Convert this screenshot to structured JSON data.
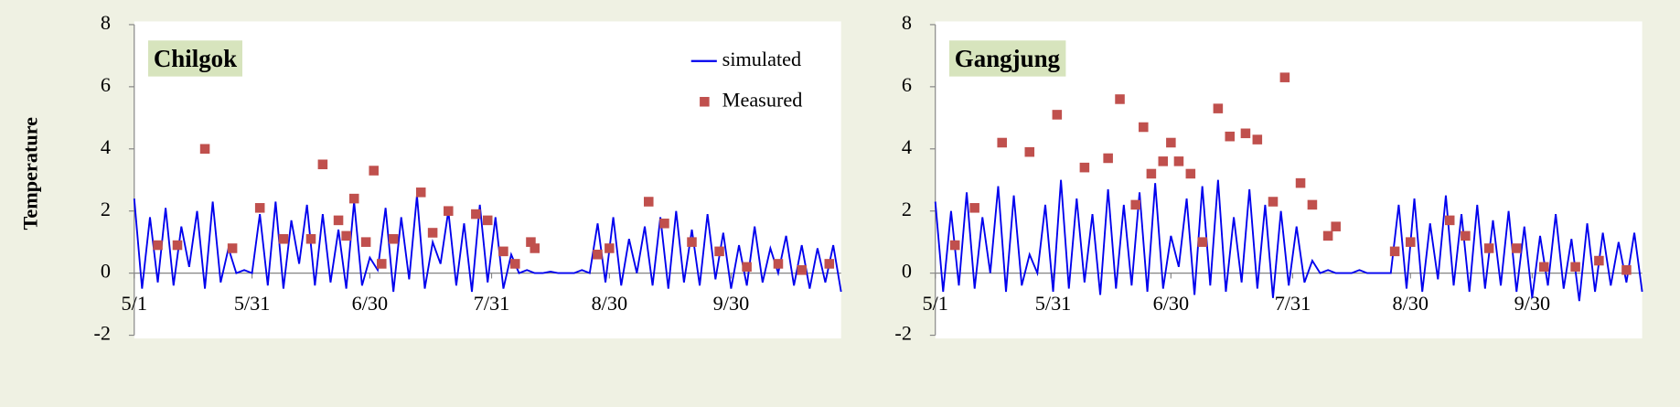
{
  "chart_data": [
    {
      "type": "line-scatter",
      "title": "Chilgok",
      "ylabel": "Temperature",
      "legend": "upper right",
      "xlim": [
        0,
        180
      ],
      "ylim": [
        -2,
        8
      ],
      "yticks": [
        -2,
        0,
        2,
        4,
        6,
        8
      ],
      "xticks": [
        {
          "value": 0,
          "label": "5/1"
        },
        {
          "value": 30,
          "label": "5/31"
        },
        {
          "value": 60,
          "label": "6/30"
        },
        {
          "value": 91,
          "label": "7/31"
        },
        {
          "value": 121,
          "label": "8/30"
        },
        {
          "value": 152,
          "label": "9/30"
        }
      ],
      "series": [
        {
          "name": "simulated",
          "color": "#0000ee",
          "style": "line",
          "x": [
            0,
            2,
            4,
            6,
            8,
            10,
            12,
            14,
            16,
            18,
            20,
            22,
            24,
            26,
            28,
            30,
            32,
            34,
            36,
            38,
            40,
            42,
            44,
            46,
            48,
            50,
            52,
            54,
            56,
            58,
            60,
            62,
            64,
            66,
            68,
            70,
            72,
            74,
            76,
            78,
            80,
            82,
            84,
            86,
            88,
            90,
            92,
            94,
            96,
            98,
            100,
            102,
            104,
            106,
            108,
            110,
            112,
            114,
            116,
            118,
            120,
            122,
            124,
            126,
            128,
            130,
            132,
            134,
            136,
            138,
            140,
            142,
            144,
            146,
            148,
            150,
            152,
            154,
            156,
            158,
            160,
            162,
            164,
            166,
            168,
            170,
            172,
            174,
            176,
            178,
            180
          ],
          "values": [
            2.4,
            -0.5,
            1.8,
            -0.3,
            2.1,
            -0.4,
            1.5,
            0.2,
            2.0,
            -0.5,
            2.3,
            -0.3,
            0.8,
            0.0,
            0.1,
            0.0,
            1.9,
            -0.4,
            2.3,
            -0.5,
            1.7,
            0.3,
            2.2,
            -0.4,
            1.9,
            -0.3,
            1.4,
            -0.5,
            2.3,
            -0.4,
            0.5,
            0.1,
            2.1,
            -0.6,
            1.8,
            -0.2,
            2.5,
            -0.5,
            1.0,
            0.3,
            2.0,
            -0.4,
            1.6,
            -0.6,
            2.2,
            -0.3,
            1.8,
            -0.5,
            0.6,
            0.0,
            0.1,
            0.0,
            0.0,
            0.05,
            0.0,
            0.0,
            0.0,
            0.1,
            0.0,
            1.6,
            -0.3,
            1.8,
            -0.4,
            1.1,
            0.0,
            1.5,
            -0.4,
            1.8,
            -0.5,
            2.0,
            -0.3,
            1.4,
            -0.4,
            1.9,
            -0.2,
            1.3,
            -0.5,
            0.9,
            -0.4,
            1.5,
            -0.3,
            0.8,
            0.0,
            1.2,
            -0.4,
            0.9,
            -0.5,
            0.8,
            -0.3,
            0.9,
            -0.6
          ]
        },
        {
          "name": "Measured",
          "color": "#c0504d",
          "style": "marker",
          "x": [
            6,
            11,
            18,
            25,
            32,
            38,
            45,
            48,
            52,
            54,
            56,
            59,
            61,
            63,
            66,
            73,
            76,
            80,
            87,
            90,
            94,
            97,
            101,
            102,
            118,
            121,
            131,
            135,
            142,
            149,
            156,
            164,
            170,
            177
          ],
          "values": [
            0.9,
            0.9,
            4.0,
            0.8,
            2.1,
            1.1,
            1.1,
            3.5,
            1.7,
            1.2,
            2.4,
            1.0,
            3.3,
            0.3,
            1.1,
            2.6,
            1.3,
            2.0,
            1.9,
            1.7,
            0.7,
            0.3,
            1.0,
            0.8,
            0.6,
            0.8,
            2.3,
            1.6,
            1.0,
            0.7,
            0.2,
            0.3,
            0.1,
            0.3
          ]
        }
      ]
    },
    {
      "type": "line-scatter",
      "title": "Gangjung",
      "legend": false,
      "xlim": [
        0,
        180
      ],
      "ylim": [
        -2,
        8
      ],
      "yticks": [
        -2,
        0,
        2,
        4,
        6,
        8
      ],
      "xticks": [
        {
          "value": 0,
          "label": "5/1"
        },
        {
          "value": 30,
          "label": "5/31"
        },
        {
          "value": 60,
          "label": "6/30"
        },
        {
          "value": 91,
          "label": "7/31"
        },
        {
          "value": 121,
          "label": "8/30"
        },
        {
          "value": 152,
          "label": "9/30"
        }
      ],
      "series": [
        {
          "name": "simulated",
          "color": "#0000ee",
          "style": "line",
          "x": [
            0,
            2,
            4,
            6,
            8,
            10,
            12,
            14,
            16,
            18,
            20,
            22,
            24,
            26,
            28,
            30,
            32,
            34,
            36,
            38,
            40,
            42,
            44,
            46,
            48,
            50,
            52,
            54,
            56,
            58,
            60,
            62,
            64,
            66,
            68,
            70,
            72,
            74,
            76,
            78,
            80,
            82,
            84,
            86,
            88,
            90,
            92,
            94,
            96,
            98,
            100,
            102,
            104,
            106,
            108,
            110,
            112,
            114,
            116,
            118,
            120,
            122,
            124,
            126,
            128,
            130,
            132,
            134,
            136,
            138,
            140,
            142,
            144,
            146,
            148,
            150,
            152,
            154,
            156,
            158,
            160,
            162,
            164,
            166,
            168,
            170,
            172,
            174,
            176,
            178,
            180
          ],
          "values": [
            2.3,
            -0.6,
            2.0,
            -0.4,
            2.6,
            -0.5,
            1.8,
            0.0,
            2.8,
            -0.6,
            2.5,
            -0.4,
            0.6,
            0.0,
            2.2,
            -0.6,
            3.0,
            -0.5,
            2.4,
            -0.3,
            1.9,
            -0.7,
            2.7,
            -0.5,
            2.2,
            -0.4,
            2.6,
            -0.6,
            2.9,
            -0.5,
            1.2,
            0.2,
            2.4,
            -0.7,
            2.8,
            -0.4,
            3.0,
            -0.6,
            1.8,
            -0.3,
            2.7,
            -0.5,
            2.2,
            -0.8,
            2.0,
            -0.4,
            1.5,
            -0.3,
            0.4,
            0.0,
            0.1,
            0.0,
            0.0,
            0.0,
            0.1,
            0.0,
            0.0,
            0.0,
            0.0,
            2.2,
            -0.5,
            2.4,
            -0.6,
            1.6,
            -0.2,
            2.5,
            -0.4,
            1.9,
            -0.6,
            2.2,
            -0.5,
            1.7,
            -0.4,
            2.0,
            -0.6,
            1.5,
            -0.8,
            1.2,
            -0.4,
            1.9,
            -0.5,
            1.1,
            -0.9,
            1.6,
            -0.6,
            1.3,
            -0.4,
            1.0,
            -0.3,
            1.3,
            -0.6
          ]
        },
        {
          "name": "Measured",
          "color": "#c0504d",
          "style": "marker",
          "x": [
            5,
            10,
            17,
            24,
            31,
            38,
            44,
            47,
            51,
            53,
            55,
            58,
            60,
            62,
            65,
            68,
            72,
            75,
            79,
            82,
            86,
            89,
            93,
            96,
            100,
            102,
            117,
            121,
            131,
            135,
            141,
            148,
            155,
            163,
            169,
            176
          ],
          "values": [
            0.9,
            2.1,
            4.2,
            3.9,
            5.1,
            3.4,
            3.7,
            5.6,
            2.2,
            4.7,
            3.2,
            3.6,
            4.2,
            3.6,
            3.2,
            1.0,
            5.3,
            4.4,
            4.5,
            4.3,
            2.3,
            6.3,
            2.9,
            2.2,
            1.2,
            1.5,
            0.7,
            1.0,
            1.7,
            1.2,
            0.8,
            0.8,
            0.2,
            0.2,
            0.4,
            0.1
          ]
        }
      ]
    }
  ]
}
